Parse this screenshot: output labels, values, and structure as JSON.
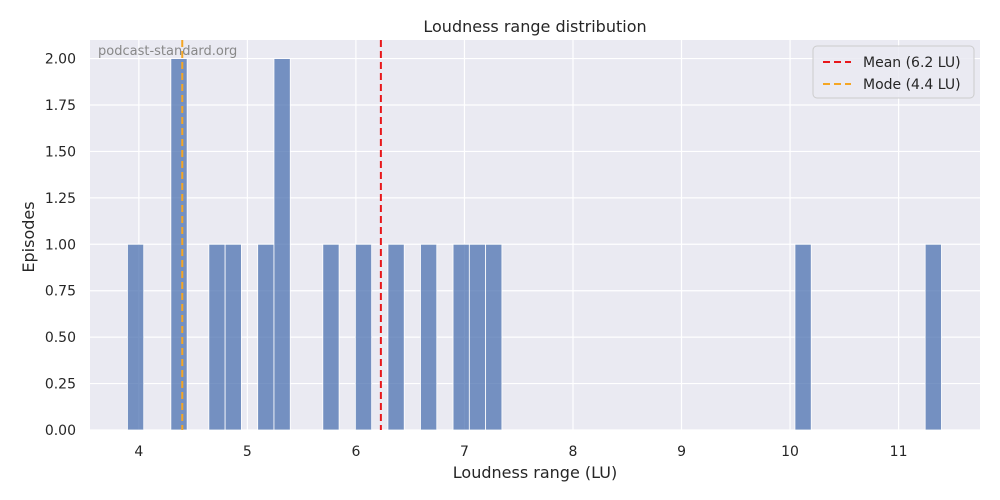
{
  "chart_data": {
    "type": "bar",
    "title": "Loudness range distribution",
    "xlabel": "Loudness range (LU)",
    "ylabel": "Episodes",
    "watermark": "podcast-standard.org",
    "xlim": [
      3.55,
      11.75
    ],
    "ylim": [
      0,
      2.1
    ],
    "bin_width": 0.15,
    "xticks": [
      4,
      5,
      6,
      7,
      8,
      9,
      10,
      11
    ],
    "yticks": [
      0.0,
      0.25,
      0.5,
      0.75,
      1.0,
      1.25,
      1.5,
      1.75,
      2.0
    ],
    "ytick_labels": [
      "0.00",
      "0.25",
      "0.50",
      "0.75",
      "1.00",
      "1.25",
      "1.50",
      "1.75",
      "2.00"
    ],
    "bars": [
      {
        "x": 3.97,
        "value": 1
      },
      {
        "x": 4.37,
        "value": 2
      },
      {
        "x": 4.72,
        "value": 1
      },
      {
        "x": 4.87,
        "value": 1
      },
      {
        "x": 5.17,
        "value": 1
      },
      {
        "x": 5.32,
        "value": 2
      },
      {
        "x": 5.77,
        "value": 1
      },
      {
        "x": 6.07,
        "value": 1
      },
      {
        "x": 6.37,
        "value": 1
      },
      {
        "x": 6.67,
        "value": 1
      },
      {
        "x": 6.97,
        "value": 1
      },
      {
        "x": 7.12,
        "value": 1
      },
      {
        "x": 7.27,
        "value": 1
      },
      {
        "x": 10.12,
        "value": 1
      },
      {
        "x": 11.32,
        "value": 1
      }
    ],
    "reference_lines": [
      {
        "name": "Mean (6.2 LU)",
        "x": 6.23,
        "color": "#e8171a"
      },
      {
        "name": "Mode (4.4 LU)",
        "x": 4.4,
        "color": "#f5a623"
      }
    ],
    "bar_color": "#4c72b0",
    "background_color": "#eaeaf2",
    "grid": true,
    "legend_position": "top-right"
  }
}
